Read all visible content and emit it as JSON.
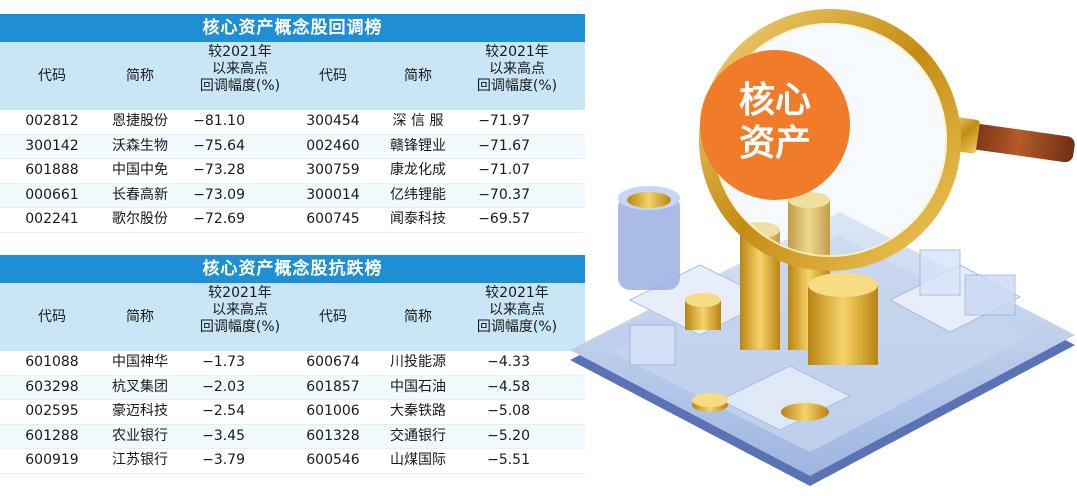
{
  "header": {
    "code": "代码",
    "name": "简称",
    "pct_l1": "较2021年",
    "pct_l2": "以来高点",
    "pct_l3": "回调幅度(%)"
  },
  "table_pullback": {
    "title": "核心资产概念股回调榜",
    "rows": [
      [
        "002812",
        "恩捷股份",
        "−81.10",
        "300454",
        "深 信 服",
        "−71.97"
      ],
      [
        "300142",
        "沃森生物",
        "−75.64",
        "002460",
        "赣锋锂业",
        "−71.67"
      ],
      [
        "601888",
        "中国中免",
        "−73.28",
        "300759",
        "康龙化成",
        "−71.07"
      ],
      [
        "000661",
        "长春高新",
        "−73.09",
        "300014",
        "亿纬锂能",
        "−70.37"
      ],
      [
        "002241",
        "歌尔股份",
        "−72.69",
        "600745",
        "闻泰科技",
        "−69.57"
      ]
    ]
  },
  "table_resilient": {
    "title": "核心资产概念股抗跌榜",
    "rows": [
      [
        "601088",
        "中国神华",
        "−1.73",
        "600674",
        "川投能源",
        "−4.33"
      ],
      [
        "603298",
        "杭叉集团",
        "−2.03",
        "601857",
        "中国石油",
        "−4.58"
      ],
      [
        "002595",
        "豪迈科技",
        "−2.54",
        "601006",
        "大秦铁路",
        "−5.08"
      ],
      [
        "601288",
        "农业银行",
        "−3.45",
        "601328",
        "交通银行",
        "−5.20"
      ],
      [
        "600919",
        "江苏银行",
        "−3.79",
        "600546",
        "山煤国际",
        "−5.51"
      ]
    ]
  },
  "illustration": {
    "lens_text_1": "核心",
    "lens_text_2": "资产",
    "colors": {
      "lens_fill": "#f07c2a",
      "gold": "#d9a521",
      "frame": "#c9971c",
      "platform": "#6f89c8"
    }
  }
}
